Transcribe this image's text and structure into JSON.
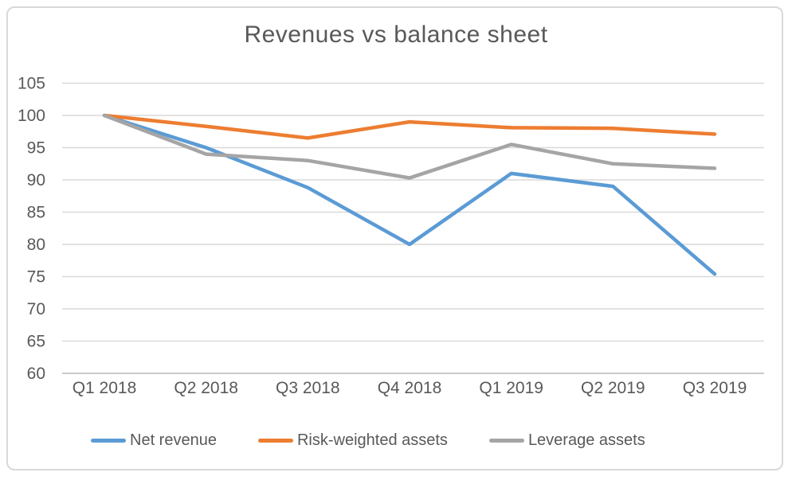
{
  "chart_data": {
    "type": "line",
    "title": "Revenues vs balance sheet",
    "categories": [
      "Q1 2018",
      "Q2 2018",
      "Q3 2018",
      "Q4 2018",
      "Q1 2019",
      "Q2 2019",
      "Q3 2019"
    ],
    "series": [
      {
        "name": "Net revenue",
        "color": "#5B9BD5",
        "values": [
          100,
          95,
          88.8,
          80,
          91,
          89,
          75.4
        ]
      },
      {
        "name": "Risk-weighted assets",
        "color": "#ED7D31",
        "values": [
          100,
          98.3,
          96.5,
          99,
          98.1,
          98,
          97.1
        ]
      },
      {
        "name": "Leverage assets",
        "color": "#A5A5A5",
        "values": [
          100,
          94,
          93,
          90.3,
          95.5,
          92.5,
          91.8
        ]
      }
    ],
    "xlabel": "",
    "ylabel": "",
    "y_ticks": [
      105,
      100,
      95,
      90,
      85,
      80,
      75,
      70,
      65,
      60
    ],
    "ylim": [
      60,
      105
    ],
    "grid": true,
    "legend_position": "bottom"
  },
  "style": {
    "text_color": "#595959",
    "gridline_color": "#D9D9D9",
    "axis_line_color": "#BFBFBF",
    "frame_border_color": "#D9D9D9",
    "background": "#FFFFFF"
  }
}
